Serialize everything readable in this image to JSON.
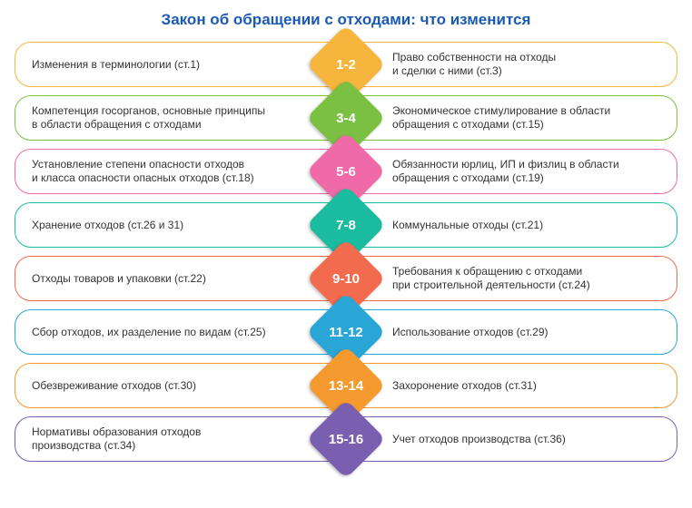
{
  "title": "Закон об обращении с отходами: что изменится",
  "text_color": "#333333",
  "title_color": "#1a5ab5",
  "title_fontsize": 17,
  "body_fontsize": 12,
  "diamond_fontsize": 15,
  "rows": [
    {
      "left": "Изменения в терминологии (ст.1)",
      "right": "Право собственности на отходы\nи сделки с ними (ст.3)",
      "badge": "1-2",
      "border": "#f6b63d",
      "diamond": "#f6b63d"
    },
    {
      "left": "Компетенция госорганов, основные принципы\nв области обращения с отходами",
      "right": "Экономическое стимулирование в области\nобращения с отходами (ст.15)",
      "badge": "3-4",
      "border": "#7bc043",
      "diamond": "#7bc043"
    },
    {
      "left": "Установление степени опасности отходов\nи класса опасности опасных отходов (ст.18)",
      "right": "Обязанности юрлиц, ИП и физлиц в области\nобращения с отходами (ст.19)",
      "badge": "5-6",
      "border": "#ef6aa7",
      "diamond": "#ef6aa7"
    },
    {
      "left": "Хранение отходов (ст.26 и 31)",
      "right": "Коммунальные отходы (ст.21)",
      "badge": "7-8",
      "border": "#1bbba0",
      "diamond": "#1bbba0"
    },
    {
      "left": "Отходы товаров и упаковки (ст.22)",
      "right": "Требования к обращению с отходами\nпри строительной деятельности (ст.24)",
      "badge": "9-10",
      "border": "#f26b4e",
      "diamond": "#f26b4e"
    },
    {
      "left": "Сбор отходов, их разделение по видам (ст.25)",
      "right": "Использование отходов (ст.29)",
      "badge": "11-12",
      "border": "#2aa6d6",
      "diamond": "#2aa6d6"
    },
    {
      "left": "Обезвреживание отходов (ст.30)",
      "right": "Захоронение отходов (ст.31)",
      "badge": "13-14",
      "border": "#f59a2e",
      "diamond": "#f59a2e"
    },
    {
      "left": "Нормативы образования отходов\nпроизводства (ст.34)",
      "right": "Учет отходов производства (ст.36)",
      "badge": "15-16",
      "border": "#7a5fb0",
      "diamond": "#7a5fb0"
    }
  ]
}
